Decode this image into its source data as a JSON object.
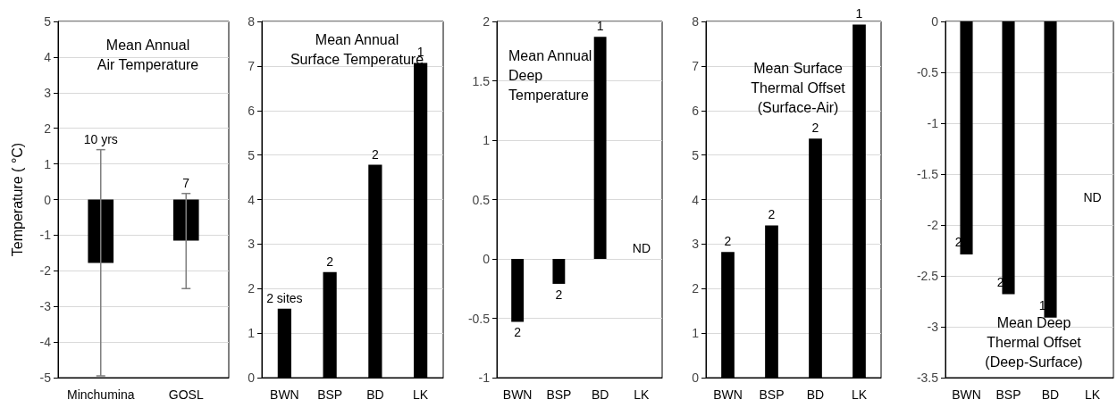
{
  "chart_data": [
    {
      "type": "bar",
      "title": "Mean Annual\nAir Temperature",
      "ylabel": "Temperature ( °C)",
      "categories": [
        "Minchumina",
        "GOSL"
      ],
      "values": [
        -1.78,
        -1.15
      ],
      "errors": [
        [
          -4.95,
          1.4
        ],
        [
          -2.5,
          0.17
        ]
      ],
      "annotations": [
        {
          "text": "10 yrs",
          "x": "Minchumina",
          "y": 1.4
        },
        {
          "text": "7",
          "x": "GOSL",
          "y": 0.17
        }
      ],
      "color": "#000000",
      "ylim": [
        -5,
        5
      ],
      "yticks": [
        -5,
        -4,
        -3,
        -2,
        -1,
        0,
        1,
        2,
        3,
        4,
        5
      ],
      "grid": "y"
    },
    {
      "type": "bar",
      "title": "Mean Annual\nSurface Temperature",
      "categories": [
        "BWN",
        "BSP",
        "BD",
        "LK"
      ],
      "values": [
        1.55,
        2.37,
        4.78,
        7.07
      ],
      "annotations": [
        {
          "text": "2 sites",
          "x": "BWN",
          "y": 1.55
        },
        {
          "text": "2",
          "x": "BSP",
          "y": 2.37
        },
        {
          "text": "2",
          "x": "BD",
          "y": 4.78
        },
        {
          "text": "1",
          "x": "LK",
          "y": 7.07
        }
      ],
      "color": "#000000",
      "ylim": [
        0,
        8
      ],
      "yticks": [
        0,
        1,
        2,
        3,
        4,
        5,
        6,
        7,
        8
      ],
      "grid": "y"
    },
    {
      "type": "bar",
      "title": "Mean Annual\nDeep\nTemperature",
      "categories": [
        "BWN",
        "BSP",
        "BD",
        "LK"
      ],
      "values": [
        -0.53,
        -0.21,
        1.87,
        null
      ],
      "annotations": [
        {
          "text": "2",
          "x": "BWN",
          "y": -0.53
        },
        {
          "text": "2",
          "x": "BSP",
          "y": -0.21
        },
        {
          "text": "1",
          "x": "BD",
          "y": 1.87
        },
        "ND"
      ],
      "color": "#000000",
      "ylim": [
        -1,
        2
      ],
      "yticks": [
        -1,
        -0.5,
        0,
        0.5,
        1,
        1.5,
        2
      ],
      "grid": "y"
    },
    {
      "type": "bar",
      "title": "Mean Surface\nThermal Offset\n(Surface-Air)",
      "categories": [
        "BWN",
        "BSP",
        "BD",
        "LK"
      ],
      "values": [
        2.82,
        3.42,
        5.37,
        7.93
      ],
      "annotations": [
        {
          "text": "2",
          "x": "BWN",
          "y": 2.82
        },
        {
          "text": "2",
          "x": "BSP",
          "y": 3.42
        },
        {
          "text": "2",
          "x": "BD",
          "y": 5.37
        },
        {
          "text": "1",
          "x": "LK",
          "y": 7.93
        }
      ],
      "color": "#000000",
      "ylim": [
        0,
        8
      ],
      "yticks": [
        0,
        1,
        2,
        3,
        4,
        5,
        6,
        7,
        8
      ],
      "grid": "y"
    },
    {
      "type": "bar",
      "title": "Mean Deep\nThermal Offset\n(Deep-Surface)",
      "categories": [
        "BWN",
        "BSP",
        "BD",
        "LK"
      ],
      "values": [
        -2.29,
        -2.68,
        -2.91,
        null
      ],
      "annotations": [
        {
          "text": "2",
          "x": "BWN",
          "y": -2.29
        },
        {
          "text": "2",
          "x": "BSP",
          "y": -2.68
        },
        {
          "text": "1",
          "x": "BD",
          "y": -2.91
        },
        "ND"
      ],
      "color": "#000000",
      "ylim": [
        -3.5,
        0
      ],
      "yticks": [
        -3.5,
        -3,
        -2.5,
        -2,
        -1.5,
        -1,
        -0.5,
        0
      ],
      "grid": "y"
    }
  ]
}
